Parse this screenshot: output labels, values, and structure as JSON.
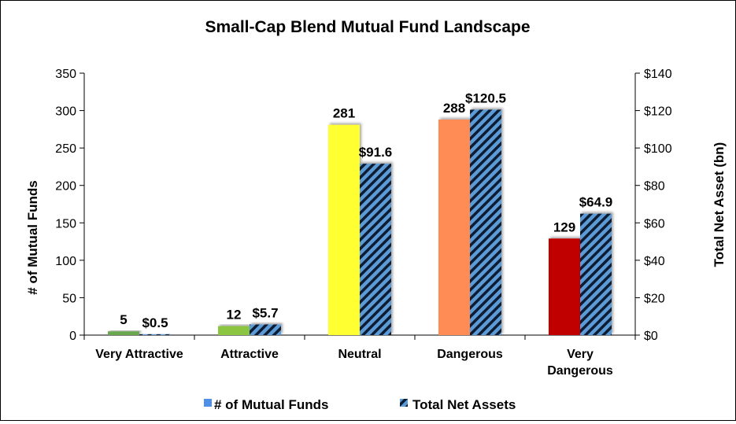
{
  "chart_data": {
    "type": "bar",
    "title": "Small-Cap Blend Mutual Fund Landscape",
    "categories": [
      [
        "Very Attractive"
      ],
      [
        "Attractive"
      ],
      [
        "Neutral"
      ],
      [
        "Dangerous"
      ],
      [
        "Very",
        "Dangerous"
      ]
    ],
    "series": [
      {
        "name": "# of Mutual Funds",
        "axis": "left",
        "values": [
          5,
          12,
          281,
          288,
          129
        ],
        "labels": [
          "5",
          "12",
          "281",
          "288",
          "129"
        ],
        "colors": [
          "#6aa84f",
          "#8cc63f",
          "#ffff33",
          "#ff8c55",
          "#c00000"
        ],
        "legend_color": "#4f8fe8"
      },
      {
        "name": "Total Net Assets",
        "axis": "right",
        "values": [
          0.5,
          5.7,
          91.6,
          120.5,
          64.9
        ],
        "labels": [
          "$0.5",
          "$5.7",
          "$91.6",
          "$120.5",
          "$64.9"
        ],
        "pattern": "diagonal stripes",
        "stripe_colors": [
          "#5b9bd5",
          "#0a1a33"
        ]
      }
    ],
    "ylabel_left": "# of Mutual Funds",
    "ylabel_right": "Total Net Asset (bn)",
    "ylim_left": [
      0,
      350
    ],
    "ylim_right": [
      0,
      140
    ],
    "yticks_left": [
      "0",
      "50",
      "100",
      "150",
      "200",
      "250",
      "300",
      "350"
    ],
    "yticks_right": [
      "$0",
      "$20",
      "$40",
      "$60",
      "$80",
      "$100",
      "$120",
      "$140"
    ],
    "grid": false,
    "legend_position": "bottom"
  }
}
